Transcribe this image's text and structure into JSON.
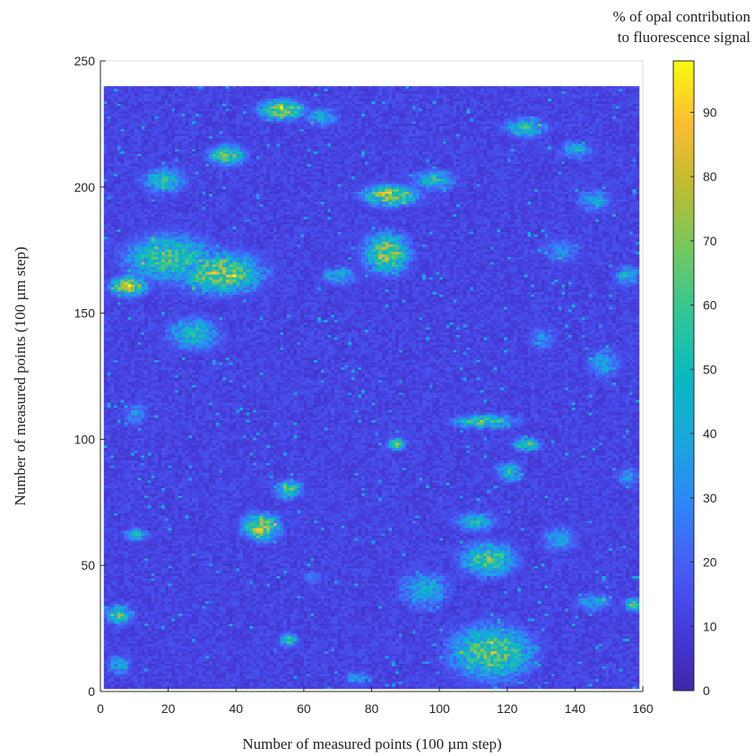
{
  "chart_data": {
    "type": "heatmap",
    "title": "",
    "xlabel": "Number of measured points (100 µm step)",
    "ylabel": "Number of measured points (100 µm step)",
    "xlim": [
      0,
      160
    ],
    "ylim": [
      0,
      250
    ],
    "data_extent": {
      "x": [
        1,
        159
      ],
      "y": [
        1,
        240
      ]
    },
    "x_ticks": [
      "0",
      "20",
      "40",
      "60",
      "80",
      "100",
      "120",
      "140",
      "160"
    ],
    "y_ticks": [
      "0",
      "50",
      "100",
      "150",
      "200",
      "250"
    ],
    "colorbar": {
      "title_lines": [
        "% of opal contribution",
        "to fluorescence signal"
      ],
      "range": [
        0,
        98
      ],
      "ticks": [
        "0",
        "10",
        "20",
        "30",
        "40",
        "50",
        "60",
        "70",
        "80",
        "90"
      ],
      "colormap": "parula"
    },
    "background_value": 12,
    "hotspots": [
      {
        "x": 8,
        "y": 161,
        "peak": 85,
        "sx": 4,
        "sy": 3
      },
      {
        "x": 35,
        "y": 166,
        "peak": 80,
        "sx": 9,
        "sy": 6
      },
      {
        "x": 20,
        "y": 172,
        "peak": 65,
        "sx": 10,
        "sy": 7
      },
      {
        "x": 27,
        "y": 142,
        "peak": 55,
        "sx": 6,
        "sy": 5
      },
      {
        "x": 85,
        "y": 197,
        "peak": 85,
        "sx": 6,
        "sy": 3
      },
      {
        "x": 84,
        "y": 174,
        "peak": 80,
        "sx": 5,
        "sy": 6
      },
      {
        "x": 98,
        "y": 203,
        "peak": 55,
        "sx": 5,
        "sy": 3
      },
      {
        "x": 37,
        "y": 213,
        "peak": 72,
        "sx": 4,
        "sy": 3
      },
      {
        "x": 53,
        "y": 231,
        "peak": 80,
        "sx": 5,
        "sy": 3
      },
      {
        "x": 65,
        "y": 228,
        "peak": 45,
        "sx": 4,
        "sy": 3
      },
      {
        "x": 18,
        "y": 203,
        "peak": 55,
        "sx": 5,
        "sy": 4
      },
      {
        "x": 125,
        "y": 224,
        "peak": 55,
        "sx": 5,
        "sy": 3
      },
      {
        "x": 47,
        "y": 65,
        "peak": 85,
        "sx": 4,
        "sy": 4
      },
      {
        "x": 55,
        "y": 80,
        "peak": 65,
        "sx": 3,
        "sy": 3
      },
      {
        "x": 87,
        "y": 98,
        "peak": 70,
        "sx": 2,
        "sy": 2
      },
      {
        "x": 113,
        "y": 107,
        "peak": 70,
        "sx": 7,
        "sy": 2
      },
      {
        "x": 125,
        "y": 98,
        "peak": 70,
        "sx": 3,
        "sy": 2
      },
      {
        "x": 120,
        "y": 87,
        "peak": 55,
        "sx": 3,
        "sy": 3
      },
      {
        "x": 114,
        "y": 52,
        "peak": 70,
        "sx": 6,
        "sy": 5
      },
      {
        "x": 115,
        "y": 15,
        "peak": 75,
        "sx": 9,
        "sy": 8
      },
      {
        "x": 110,
        "y": 67,
        "peak": 50,
        "sx": 5,
        "sy": 3
      },
      {
        "x": 95,
        "y": 40,
        "peak": 45,
        "sx": 6,
        "sy": 6
      },
      {
        "x": 157,
        "y": 34,
        "peak": 70,
        "sx": 2,
        "sy": 2
      },
      {
        "x": 5,
        "y": 30,
        "peak": 65,
        "sx": 3,
        "sy": 3
      },
      {
        "x": 55,
        "y": 20,
        "peak": 65,
        "sx": 2,
        "sy": 2
      },
      {
        "x": 145,
        "y": 35,
        "peak": 45,
        "sx": 4,
        "sy": 3
      },
      {
        "x": 155,
        "y": 165,
        "peak": 50,
        "sx": 3,
        "sy": 3
      },
      {
        "x": 148,
        "y": 130,
        "peak": 40,
        "sx": 4,
        "sy": 5
      },
      {
        "x": 10,
        "y": 62,
        "peak": 50,
        "sx": 3,
        "sy": 2
      },
      {
        "x": 135,
        "y": 175,
        "peak": 35,
        "sx": 5,
        "sy": 4
      },
      {
        "x": 70,
        "y": 165,
        "peak": 45,
        "sx": 4,
        "sy": 3
      },
      {
        "x": 140,
        "y": 215,
        "peak": 45,
        "sx": 4,
        "sy": 3
      },
      {
        "x": 145,
        "y": 195,
        "peak": 40,
        "sx": 4,
        "sy": 4
      },
      {
        "x": 10,
        "y": 110,
        "peak": 35,
        "sx": 3,
        "sy": 4
      },
      {
        "x": 155,
        "y": 85,
        "peak": 40,
        "sx": 3,
        "sy": 3
      },
      {
        "x": 75,
        "y": 5,
        "peak": 40,
        "sx": 3,
        "sy": 2
      },
      {
        "x": 62,
        "y": 45,
        "peak": 40,
        "sx": 2,
        "sy": 2
      },
      {
        "x": 135,
        "y": 60,
        "peak": 45,
        "sx": 4,
        "sy": 4
      },
      {
        "x": 5,
        "y": 10,
        "peak": 45,
        "sx": 3,
        "sy": 3
      },
      {
        "x": 130,
        "y": 140,
        "peak": 35,
        "sx": 3,
        "sy": 4
      }
    ]
  }
}
